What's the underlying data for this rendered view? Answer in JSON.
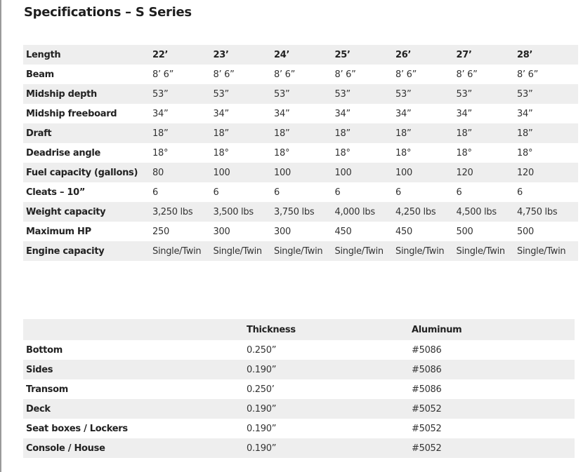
{
  "title": "Specifications – S Series",
  "specs": {
    "rows": [
      {
        "label": "Length",
        "values": [
          "22’",
          "23’",
          "24’",
          "25’",
          "26’",
          "27’",
          "28’"
        ]
      },
      {
        "label": "Beam",
        "values": [
          "8’ 6”",
          "8’ 6”",
          "8’ 6”",
          "8’ 6”",
          "8’ 6”",
          "8’ 6”",
          "8’ 6”"
        ]
      },
      {
        "label": "Midship depth",
        "values": [
          "53”",
          "53”",
          "53”",
          "53”",
          "53”",
          "53”",
          "53”"
        ]
      },
      {
        "label": "Midship freeboard",
        "values": [
          "34”",
          "34”",
          "34”",
          "34”",
          "34”",
          "34”",
          "34”"
        ]
      },
      {
        "label": "Draft",
        "values": [
          "18”",
          "18”",
          "18”",
          "18”",
          "18”",
          "18”",
          "18”"
        ]
      },
      {
        "label": "Deadrise angle",
        "values": [
          "18°",
          "18°",
          "18°",
          "18°",
          "18°",
          "18°",
          "18°"
        ]
      },
      {
        "label": "Fuel capacity (gallons)",
        "values": [
          "80",
          "100",
          "100",
          "100",
          "100",
          "120",
          "120"
        ]
      },
      {
        "label": "Cleats – 10”",
        "values": [
          "6",
          "6",
          "6",
          "6",
          "6",
          "6",
          "6"
        ]
      },
      {
        "label": "Weight capacity",
        "values": [
          "3,250 lbs",
          "3,500 lbs",
          "3,750 lbs",
          "4,000 lbs",
          "4,250 lbs",
          "4,500 lbs",
          "4,750 lbs"
        ]
      },
      {
        "label": "Maximum HP",
        "values": [
          "250",
          "300",
          "300",
          "450",
          "450",
          "500",
          "500"
        ]
      },
      {
        "label": "Engine capacity",
        "values": [
          "Single/Twin",
          "Single/Twin",
          "Single/Twin",
          "Single/Twin",
          "Single/Twin",
          "Single/Twin",
          "Single/Twin"
        ]
      }
    ]
  },
  "materials": {
    "headers": [
      "",
      "Thickness",
      "Aluminum"
    ],
    "rows": [
      [
        "Bottom",
        "0.250”",
        "#5086"
      ],
      [
        "Sides",
        "0.190”",
        "#5086"
      ],
      [
        "Transom",
        "0.250’",
        "#5086"
      ],
      [
        "Deck",
        "0.190”",
        "#5052"
      ],
      [
        "Seat boxes / Lockers",
        "0.190”",
        "#5052"
      ],
      [
        "Console / House",
        "0.190”",
        "#5052"
      ]
    ]
  }
}
